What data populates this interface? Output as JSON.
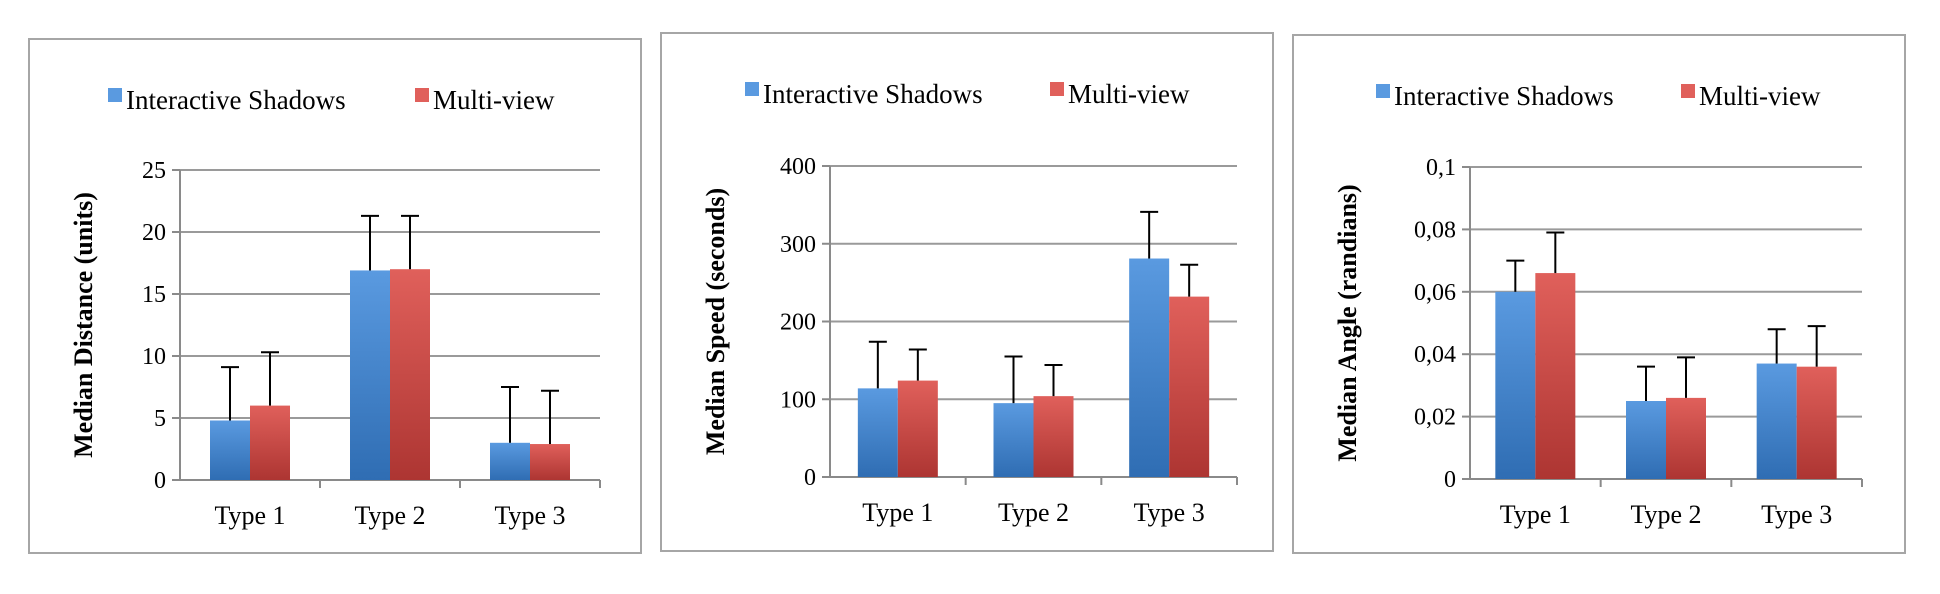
{
  "colors": {
    "series1_top": "#5a9ae0",
    "series1_bottom": "#2f6db3",
    "series2_top": "#e0605b",
    "series2_bottom": "#ad3532",
    "grid": "#9a9a9a",
    "axis": "#8a8a8a",
    "error_bar": "#000000"
  },
  "chart_data": [
    {
      "type": "bar",
      "categories": [
        "Type 1",
        "Type 2",
        "Type 3"
      ],
      "series": [
        {
          "name": "Interactive Shadows",
          "values": [
            4.8,
            16.9,
            3.0
          ],
          "errors": [
            4.3,
            4.4,
            4.5
          ]
        },
        {
          "name": "Multi-view",
          "values": [
            6.0,
            17.0,
            2.9
          ],
          "errors": [
            4.3,
            4.3,
            4.3
          ]
        }
      ],
      "ylabel": "Median Distance (units)",
      "ylim": [
        0,
        25
      ],
      "yticks": [
        0,
        5,
        10,
        15,
        20,
        25
      ],
      "ytick_labels": [
        "0",
        "5",
        "10",
        "15",
        "20",
        "25"
      ],
      "grid": true,
      "legend": "top"
    },
    {
      "type": "bar",
      "categories": [
        "Type 1",
        "Type 2",
        "Type 3"
      ],
      "series": [
        {
          "name": "Interactive Shadows",
          "values": [
            114,
            95,
            281
          ],
          "errors": [
            60,
            60,
            60
          ]
        },
        {
          "name": "Multi-view",
          "values": [
            124,
            104,
            232
          ],
          "errors": [
            40,
            40,
            41
          ]
        }
      ],
      "ylabel": "Median Speed (seconds)",
      "ylim": [
        0,
        400
      ],
      "yticks": [
        0,
        100,
        200,
        300,
        400
      ],
      "ytick_labels": [
        "0",
        "100",
        "200",
        "300",
        "400"
      ],
      "grid": true,
      "legend": "top"
    },
    {
      "type": "bar",
      "categories": [
        "Type 1",
        "Type 2",
        "Type 3"
      ],
      "series": [
        {
          "name": "Interactive Shadows",
          "values": [
            0.06,
            0.025,
            0.037
          ],
          "errors": [
            0.01,
            0.011,
            0.011
          ]
        },
        {
          "name": "Multi-view",
          "values": [
            0.066,
            0.026,
            0.036
          ],
          "errors": [
            0.013,
            0.013,
            0.013
          ]
        }
      ],
      "ylabel": "Median Angle (randians)",
      "ylim": [
        0,
        0.1
      ],
      "yticks": [
        0,
        0.02,
        0.04,
        0.06,
        0.08,
        0.1
      ],
      "ytick_labels": [
        "0",
        "0,02",
        "0,04",
        "0,06",
        "0,08",
        "0,1"
      ],
      "grid": true,
      "legend": "top"
    }
  ]
}
